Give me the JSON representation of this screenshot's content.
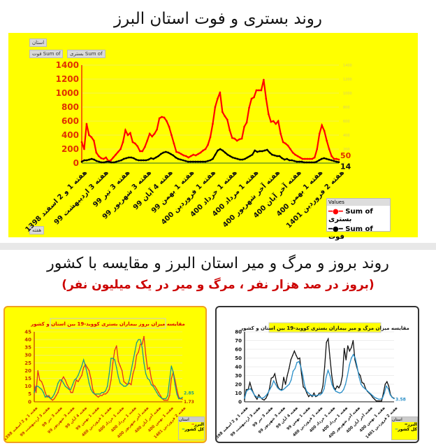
{
  "title": "روند بستری و فوت استان البرز",
  "section2_title": "روند بروز و مرگ و میر استان البرز و مقایسه با کشور",
  "section2_subtitle": "(بروز در صد هزار نفر ، مرگ و میر در یک میلیون نفر)",
  "x_labels": [
    "هفته 1 و 2 اسفند 1398",
    "هفته 3 اردیبهشت 99",
    "هفته 3 تیر 99",
    "هفته 3 شهریور 99",
    "هفته 4 آبان 99",
    "هفته 1 بهمن 99",
    "هفته 1 فروردین 400",
    "هفته 1 خرداد 400",
    "هفته 1 مرداد 400",
    "هفته آخر شهریور 400",
    "هفته آخر آبان 400",
    "هفته 1 بهمن 400",
    "هفته 2 فروردین 1401"
  ],
  "chart_data": [
    {
      "type": "line",
      "title": "روند بستری و فوت استان البرز",
      "ylim": [
        0,
        1400
      ],
      "yticks": [
        0,
        200,
        400,
        600,
        800,
        1000,
        1200,
        1400
      ],
      "grid": true,
      "legend_placement": "bottom-right",
      "legend_title": "Values",
      "filter_buttons": {
        "province": "استان",
        "sum_death": "Sum of فوت",
        "sum_hosp": "Sum of بستری",
        "week": "هفته"
      },
      "end_labels": [
        "50",
        "14"
      ],
      "series": [
        {
          "name": "Sum of بستری",
          "color": "#ff0000",
          "values": [
            300,
            200,
            560,
            400,
            370,
            320,
            150,
            100,
            70,
            60,
            80,
            30,
            40,
            80,
            120,
            160,
            200,
            300,
            470,
            400,
            430,
            300,
            280,
            240,
            170,
            170,
            230,
            320,
            420,
            380,
            420,
            480,
            640,
            660,
            650,
            600,
            520,
            400,
            280,
            160,
            150,
            130,
            110,
            100,
            80,
            100,
            120,
            110,
            130,
            150,
            180,
            200,
            260,
            370,
            560,
            800,
            920,
            1010,
            730,
            670,
            620,
            470,
            360,
            350,
            320,
            340,
            350,
            520,
            580,
            790,
            920,
            940,
            1040,
            1040,
            1040,
            1190,
            920,
            700,
            590,
            600,
            560,
            600,
            420,
            300,
            280,
            250,
            200,
            150,
            120,
            100,
            80,
            60,
            60,
            60,
            60,
            60,
            80,
            200,
            420,
            540,
            460,
            320,
            200,
            100,
            60,
            60,
            50
          ]
        },
        {
          "name": "Sum of فوت",
          "color": "#000000",
          "values": [
            20,
            40,
            40,
            50,
            60,
            50,
            30,
            20,
            10,
            10,
            20,
            20,
            10,
            10,
            20,
            30,
            40,
            60,
            70,
            80,
            80,
            70,
            50,
            40,
            40,
            40,
            40,
            50,
            70,
            60,
            80,
            100,
            130,
            150,
            160,
            150,
            130,
            110,
            80,
            60,
            50,
            40,
            30,
            20,
            20,
            20,
            20,
            20,
            20,
            20,
            20,
            30,
            40,
            60,
            120,
            180,
            200,
            180,
            150,
            120,
            100,
            80,
            70,
            60,
            50,
            50,
            60,
            80,
            100,
            120,
            180,
            160,
            170,
            170,
            180,
            190,
            150,
            120,
            110,
            100,
            100,
            70,
            50,
            60,
            40,
            40,
            30,
            20,
            20,
            20,
            10,
            10,
            10,
            10,
            10,
            20,
            40,
            60,
            70,
            60,
            50,
            40,
            30,
            20,
            14
          ]
        }
      ]
    },
    {
      "type": "line",
      "title": "مقایسه میزان بروز بیماران بستری کووید-19 بین استان و کشور",
      "ylim": [
        0,
        45
      ],
      "yticks": [
        0,
        5,
        10,
        15,
        20,
        25,
        30,
        35,
        40,
        45
      ],
      "grid": true,
      "legend_placement": "bottom-right",
      "legend_title": "استان",
      "end_labels": [
        "2.85",
        "1.73"
      ],
      "series": [
        {
          "name": "البرز",
          "color": "#e53020",
          "values": [
            11,
            6,
            20,
            14,
            13,
            10,
            6,
            3,
            4,
            2,
            1,
            2,
            4,
            6,
            10,
            14,
            16,
            14,
            11,
            9,
            6,
            6,
            10,
            14,
            13,
            15,
            17,
            22,
            24,
            22,
            20,
            15,
            8,
            5,
            4,
            3,
            4,
            4,
            5,
            5,
            6,
            8,
            14,
            25,
            33,
            36,
            26,
            23,
            20,
            13,
            12,
            11,
            12,
            11,
            18,
            22,
            30,
            32,
            37,
            37,
            42,
            30,
            21,
            22,
            15,
            11,
            10,
            8,
            6,
            4,
            2,
            1,
            1,
            1,
            4,
            15,
            19,
            14,
            8,
            3,
            2,
            1.73
          ]
        },
        {
          "name": "کل کشور",
          "color": "#1a9a8a",
          "values": [
            6,
            10,
            10,
            9,
            8,
            6,
            3,
            4,
            3,
            2,
            3,
            5,
            8,
            12,
            14,
            14,
            12,
            10,
            9,
            8,
            8,
            11,
            14,
            15,
            17,
            20,
            23,
            27,
            23,
            18,
            12,
            8,
            6,
            5,
            5,
            5,
            5,
            6,
            6,
            7,
            10,
            18,
            28,
            28,
            27,
            22,
            16,
            12,
            11,
            10,
            10,
            11,
            14,
            20,
            26,
            32,
            38,
            40,
            40,
            35,
            25,
            18,
            15,
            14,
            11,
            10,
            8,
            6,
            4,
            3,
            2,
            2,
            2,
            4,
            14,
            23,
            19,
            11,
            5,
            2,
            2,
            2.85
          ]
        }
      ]
    },
    {
      "type": "line",
      "title": "مقایسه میزان مرگ و میر بیماران بستری کووید-19 بین استان و کشور",
      "ylim": [
        0,
        80
      ],
      "yticks": [
        0,
        10,
        20,
        30,
        40,
        50,
        60,
        70,
        80
      ],
      "grid": true,
      "legend_placement": "bottom-right",
      "legend_title": "استان",
      "end_labels": [
        "3.58"
      ],
      "series": [
        {
          "name": "البرز",
          "color": "#111111",
          "values": [
            3,
            14,
            14,
            22,
            15,
            10,
            6,
            3,
            8,
            5,
            3,
            2,
            4,
            8,
            15,
            27,
            28,
            32,
            22,
            16,
            14,
            14,
            28,
            20,
            30,
            38,
            48,
            53,
            58,
            53,
            49,
            50,
            32,
            17,
            15,
            10,
            6,
            8,
            6,
            10,
            6,
            7,
            10,
            10,
            18,
            40,
            68,
            72,
            50,
            30,
            17,
            14,
            18,
            16,
            20,
            30,
            61,
            48,
            64,
            58,
            62,
            70,
            48,
            40,
            33,
            30,
            22,
            21,
            15,
            12,
            10,
            8,
            5,
            3,
            1,
            1,
            1,
            1,
            10,
            20,
            23,
            18,
            8,
            5,
            4
          ]
        },
        {
          "name": "کل کشور",
          "color": "#2a8fc8",
          "values": [
            4,
            12,
            14,
            15,
            12,
            8,
            6,
            5,
            5,
            4,
            5,
            7,
            10,
            14,
            18,
            24,
            20,
            16,
            14,
            13,
            14,
            16,
            18,
            20,
            25,
            35,
            38,
            45,
            46,
            40,
            30,
            18,
            12,
            10,
            8,
            7,
            7,
            7,
            8,
            8,
            10,
            15,
            28,
            36,
            30,
            20,
            15,
            12,
            11,
            10,
            11,
            14,
            20,
            30,
            42,
            50,
            54,
            50,
            40,
            28,
            20,
            17,
            15,
            13,
            11,
            9,
            7,
            5,
            4,
            3,
            3,
            4,
            10,
            18,
            15,
            8,
            5,
            3.58
          ]
        }
      ]
    }
  ]
}
